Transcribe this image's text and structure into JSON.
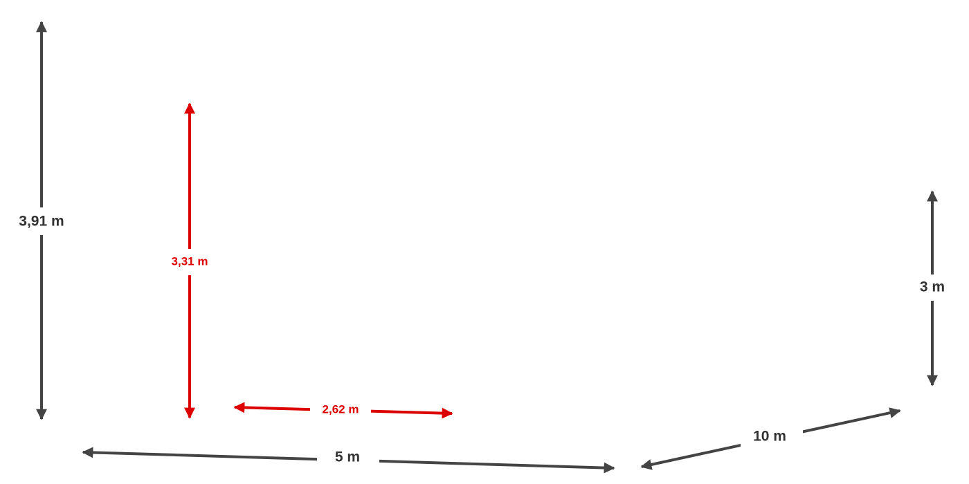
{
  "dimensions": [
    {
      "label": "3,91 m"
    },
    {
      "label": "3,31 m"
    },
    {
      "label": "2,62 m"
    },
    {
      "label": "5 m"
    },
    {
      "label": "10 m"
    },
    {
      "label": "3 m"
    }
  ]
}
